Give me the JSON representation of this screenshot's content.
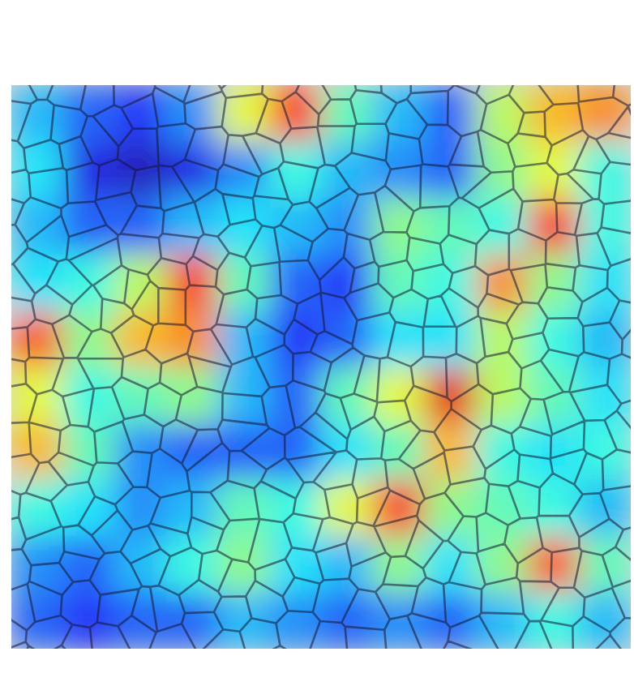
{
  "chart_data": {
    "type": "heatmap",
    "tick_labels": false,
    "zlim": [
      0,
      1
    ],
    "z": [
      [
        0.3,
        0.2,
        0.15,
        0.25,
        0.6,
        0.85,
        0.45,
        0.3,
        0.2,
        0.55,
        0.7,
        0.75
      ],
      [
        0.35,
        0.1,
        0.05,
        0.1,
        0.25,
        0.4,
        0.3,
        0.25,
        0.2,
        0.5,
        0.6,
        0.4
      ],
      [
        0.3,
        0.2,
        0.2,
        0.3,
        0.35,
        0.3,
        0.25,
        0.5,
        0.45,
        0.4,
        0.85,
        0.4
      ],
      [
        0.35,
        0.4,
        0.55,
        0.85,
        0.45,
        0.2,
        0.15,
        0.45,
        0.4,
        0.75,
        0.5,
        0.35
      ],
      [
        0.8,
        0.5,
        0.7,
        0.75,
        0.3,
        0.15,
        0.2,
        0.35,
        0.35,
        0.55,
        0.4,
        0.3
      ],
      [
        0.6,
        0.4,
        0.45,
        0.5,
        0.3,
        0.2,
        0.45,
        0.6,
        0.9,
        0.55,
        0.45,
        0.35
      ],
      [
        0.7,
        0.45,
        0.25,
        0.2,
        0.2,
        0.2,
        0.35,
        0.45,
        0.7,
        0.4,
        0.35,
        0.4
      ],
      [
        0.4,
        0.35,
        0.25,
        0.3,
        0.45,
        0.4,
        0.6,
        0.85,
        0.5,
        0.45,
        0.4,
        0.3
      ],
      [
        0.25,
        0.2,
        0.3,
        0.4,
        0.5,
        0.35,
        0.3,
        0.5,
        0.35,
        0.5,
        0.8,
        0.45
      ],
      [
        0.2,
        0.15,
        0.2,
        0.2,
        0.3,
        0.25,
        0.2,
        0.25,
        0.2,
        0.3,
        0.4,
        0.3
      ]
    ]
  }
}
